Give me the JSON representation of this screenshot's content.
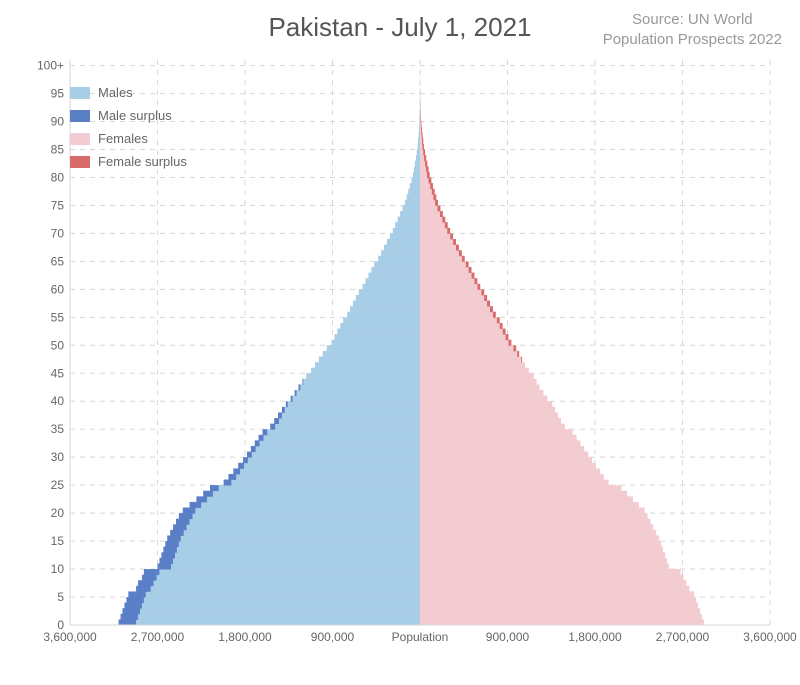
{
  "title": "Pakistan - July 1, 2021",
  "source_line1": "Source: UN World",
  "source_line2": "Population Prospects 2022",
  "chart": {
    "type": "population-pyramid",
    "background_color": "#ffffff",
    "grid_color": "#d7d7d7",
    "axis_text_color": "#666666",
    "title_color": "#555555",
    "title_fontsize": 26,
    "axis_fontsize": 12,
    "legend_fontsize": 13,
    "x_axis": {
      "min": -3600000,
      "max": 3600000,
      "tick_step": 900000,
      "tick_labels_left": [
        "3,600,000",
        "2,700,000",
        "1,800,000",
        "900,000"
      ],
      "center_label": "Population",
      "tick_labels_right": [
        "900,000",
        "1,800,000",
        "2,700,000",
        "3,600,000"
      ]
    },
    "y_axis": {
      "min": 0,
      "max": 100,
      "tick_step": 5,
      "top_label": "100+"
    },
    "colors": {
      "males": "#a8cde6",
      "male_surplus": "#5a7fc7",
      "females": "#f3ccd1",
      "female_surplus": "#d96b6b"
    },
    "legend": [
      {
        "label": "Males",
        "color": "#a8cde6"
      },
      {
        "label": "Male surplus",
        "color": "#5a7fc7"
      },
      {
        "label": "Females",
        "color": "#f3ccd1"
      },
      {
        "label": "Female surplus",
        "color": "#d96b6b"
      }
    ],
    "ages": [
      0,
      1,
      2,
      3,
      4,
      5,
      6,
      7,
      8,
      9,
      10,
      11,
      12,
      13,
      14,
      15,
      16,
      17,
      18,
      19,
      20,
      21,
      22,
      23,
      24,
      25,
      26,
      27,
      28,
      29,
      30,
      31,
      32,
      33,
      34,
      35,
      36,
      37,
      38,
      39,
      40,
      41,
      42,
      43,
      44,
      45,
      46,
      47,
      48,
      49,
      50,
      51,
      52,
      53,
      54,
      55,
      56,
      57,
      58,
      59,
      60,
      61,
      62,
      63,
      64,
      65,
      66,
      67,
      68,
      69,
      70,
      71,
      72,
      73,
      74,
      75,
      76,
      77,
      78,
      79,
      80,
      81,
      82,
      83,
      84,
      85,
      86,
      87,
      88,
      89,
      90,
      91,
      92,
      93,
      94,
      95,
      96,
      97,
      98,
      99,
      100
    ],
    "males": [
      3100000,
      3080000,
      3060000,
      3040000,
      3020000,
      3000000,
      2920000,
      2900000,
      2860000,
      2840000,
      2700000,
      2680000,
      2660000,
      2640000,
      2620000,
      2600000,
      2570000,
      2540000,
      2510000,
      2480000,
      2440000,
      2370000,
      2300000,
      2230000,
      2160000,
      2020000,
      1970000,
      1920000,
      1870000,
      1820000,
      1780000,
      1740000,
      1700000,
      1660000,
      1620000,
      1540000,
      1500000,
      1460000,
      1420000,
      1380000,
      1330000,
      1290000,
      1250000,
      1210000,
      1170000,
      1120000,
      1080000,
      1040000,
      1000000,
      960000,
      910000,
      880000,
      850000,
      820000,
      790000,
      750000,
      720000,
      690000,
      660000,
      630000,
      590000,
      560000,
      530000,
      500000,
      470000,
      430000,
      400000,
      370000,
      340000,
      310000,
      280000,
      255000,
      230000,
      205000,
      180000,
      155000,
      138000,
      121000,
      104000,
      87000,
      72000,
      62000,
      52000,
      42000,
      33000,
      25000,
      20000,
      15500,
      11500,
      8000,
      5500,
      3800,
      2600,
      1800,
      1200,
      800,
      500,
      300,
      180,
      100,
      60
    ],
    "females": [
      2920000,
      2900000,
      2880000,
      2860000,
      2840000,
      2820000,
      2770000,
      2740000,
      2710000,
      2680000,
      2560000,
      2540000,
      2520000,
      2500000,
      2480000,
      2460000,
      2430000,
      2400000,
      2370000,
      2340000,
      2310000,
      2250000,
      2190000,
      2130000,
      2070000,
      1940000,
      1890000,
      1850000,
      1810000,
      1770000,
      1730000,
      1690000,
      1650000,
      1610000,
      1570000,
      1490000,
      1450000,
      1420000,
      1390000,
      1360000,
      1310000,
      1270000,
      1230000,
      1200000,
      1170000,
      1120000,
      1080000,
      1050000,
      1020000,
      990000,
      940000,
      910000,
      880000,
      850000,
      820000,
      780000,
      750000,
      720000,
      690000,
      660000,
      620000,
      590000,
      560000,
      530000,
      500000,
      460000,
      430000,
      400000,
      370000,
      340000,
      310000,
      285000,
      260000,
      235000,
      210000,
      185000,
      168000,
      151000,
      134000,
      117000,
      100000,
      88000,
      76000,
      64000,
      52000,
      41000,
      34000,
      27000,
      21000,
      15500,
      11000,
      7800,
      5500,
      3800,
      2600,
      1800,
      1200,
      800,
      500,
      300,
      180
    ]
  }
}
